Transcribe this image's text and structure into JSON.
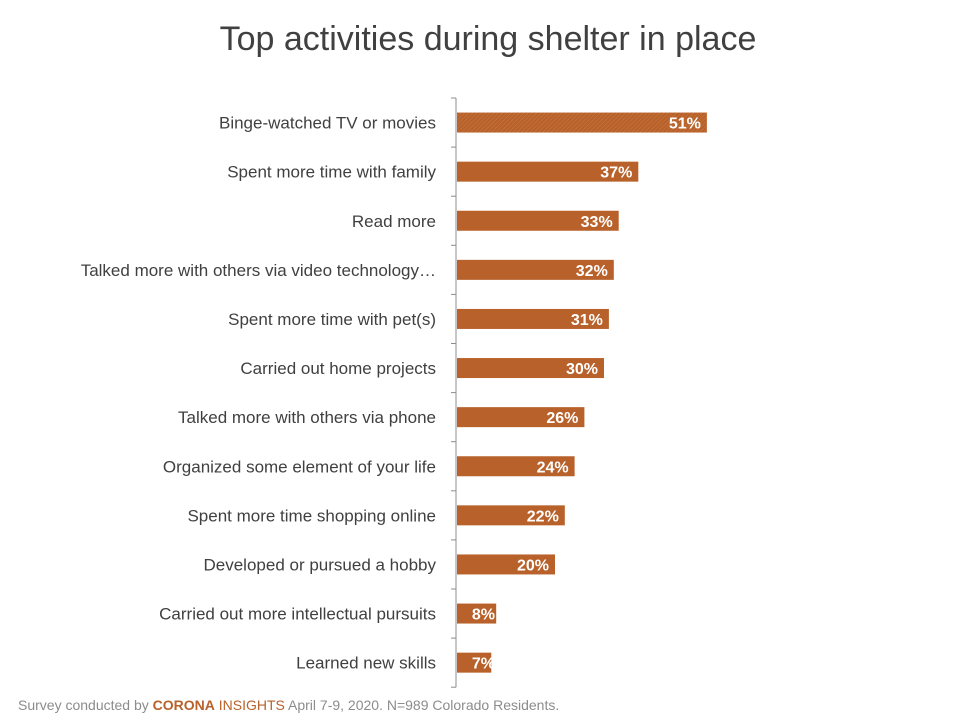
{
  "chart_data": {
    "type": "bar",
    "orientation": "horizontal",
    "title": "Top activities during shelter in place",
    "categories": [
      "Binge-watched TV or movies",
      "Spent more time with family",
      "Read more",
      "Talked more with others via video technology…",
      "Spent more time with pet(s)",
      "Carried out home projects",
      "Talked more with others via phone",
      "Organized some element of your life",
      "Spent more time shopping online",
      "Developed or pursued a hobby",
      "Carried out more intellectual pursuits",
      "Learned new skills"
    ],
    "values": [
      51,
      37,
      33,
      32,
      31,
      30,
      26,
      24,
      22,
      20,
      8,
      7
    ],
    "value_labels": [
      "51%",
      "37%",
      "33%",
      "32%",
      "31%",
      "30%",
      "26%",
      "24%",
      "22%",
      "20%",
      "8%",
      "7%"
    ],
    "xlim": [
      0,
      100
    ],
    "grid": false,
    "legend": "none",
    "bar_color": "#b8612a"
  },
  "footer": {
    "prefix": "Survey conducted by ",
    "brand_part1": "CORONA",
    "brand_part2": " INSIGHTS",
    "suffix": " April 7-9, 2020. N=989 Colorado Residents."
  }
}
